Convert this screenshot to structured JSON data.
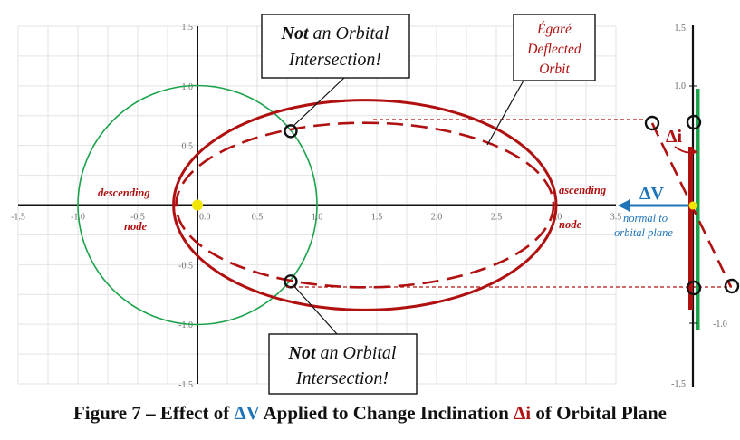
{
  "plot": {
    "xmin": -1.5,
    "xmax": 3.5,
    "ymin": -1.5,
    "ymax": 1.5,
    "x_ticks": [
      "-1.5",
      "-1.0",
      "-0.5",
      "0.0",
      "0.5",
      "1.0",
      "1.5",
      "2.0",
      "2.5",
      "3.0",
      "3.5"
    ],
    "y_ticks": [
      "1.5",
      "1.0",
      "0.5",
      "-0.5",
      "-1.0",
      "-1.5"
    ],
    "origin_label": "0.0"
  },
  "side_axis": {
    "y_ticks": [
      "1.5",
      "1.0",
      "-1.0",
      "-1.5"
    ]
  },
  "labels": {
    "descending": "descending",
    "node_left": "node",
    "ascending": "ascending",
    "node_right": "node",
    "callout_top": {
      "not": "Not",
      "rest1": " an Orbital",
      "line2": "Intersection!"
    },
    "callout_bottom": {
      "not": "Not",
      "rest1": " an Orbital",
      "line2": "Intersection!"
    },
    "egare": [
      "Égaré",
      "Deflected",
      "Orbit"
    ],
    "delta_v": "ΔV",
    "normal_1": "normal to",
    "normal_2": "orbital plane",
    "delta_i": "Δi"
  },
  "caption": {
    "prefix": "Figure 7 – Effect of ",
    "dv": "ΔV",
    "middle": " Applied to Change Inclination ",
    "di": "Δi",
    "suffix": " of Orbital Plane"
  },
  "colors": {
    "circle": "#1aa34a",
    "orbit": "#b01010",
    "delta_v": "#1f74b8",
    "green_bar": "#1aa34a",
    "origin_dot": "#f2e600"
  }
}
